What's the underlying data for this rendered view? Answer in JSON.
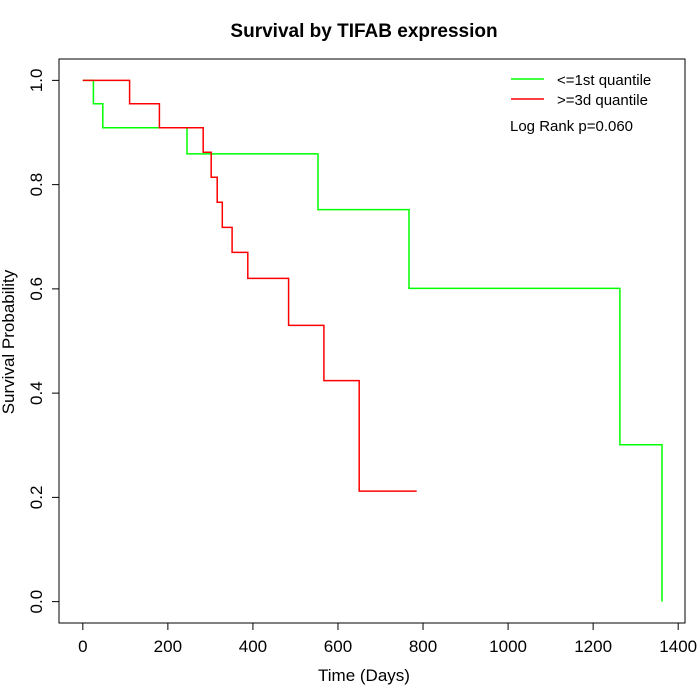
{
  "chart_data": {
    "type": "line",
    "subtype": "kaplan-meier step",
    "title": "Survival by TIFAB expression",
    "xlabel": "Time (Days)",
    "ylabel": "Survival Probability",
    "xlim": [
      0,
      1400
    ],
    "ylim": [
      0,
      1.0
    ],
    "x_ticks": [
      0,
      200,
      400,
      600,
      800,
      1000,
      1200,
      1400
    ],
    "x_tick_labels": [
      "0",
      "200",
      "400",
      "600",
      "800",
      "1000",
      "1200",
      "1400"
    ],
    "y_ticks": [
      0.0,
      0.2,
      0.4,
      0.6,
      0.8,
      1.0
    ],
    "y_tick_labels": [
      "0.0",
      "0.2",
      "0.4",
      "0.6",
      "0.8",
      "1.0"
    ],
    "grid": false,
    "legend_position": "top-right",
    "annotation": "Log Rank p=0.060",
    "series": [
      {
        "name": "<=1st quantile",
        "color": "#00ff00",
        "x": [
          0,
          25,
          25,
          47,
          47,
          245,
          245,
          553,
          553,
          767,
          767,
          1263,
          1263,
          1362,
          1362
        ],
        "y": [
          1.0,
          1.0,
          0.955,
          0.955,
          0.909,
          0.909,
          0.859,
          0.859,
          0.752,
          0.752,
          0.601,
          0.601,
          0.301,
          0.301,
          0.0
        ]
      },
      {
        "name": ">=3d quantile",
        "color": "#ff0000",
        "x": [
          0,
          110,
          110,
          180,
          180,
          283,
          283,
          302,
          302,
          316,
          316,
          328,
          328,
          351,
          351,
          388,
          388,
          484,
          484,
          567,
          567,
          650,
          650,
          785
        ],
        "y": [
          1.0,
          1.0,
          0.955,
          0.955,
          0.909,
          0.909,
          0.862,
          0.862,
          0.814,
          0.814,
          0.766,
          0.766,
          0.718,
          0.718,
          0.67,
          0.67,
          0.62,
          0.62,
          0.53,
          0.53,
          0.424,
          0.424,
          0.212,
          0.212
        ]
      }
    ]
  }
}
